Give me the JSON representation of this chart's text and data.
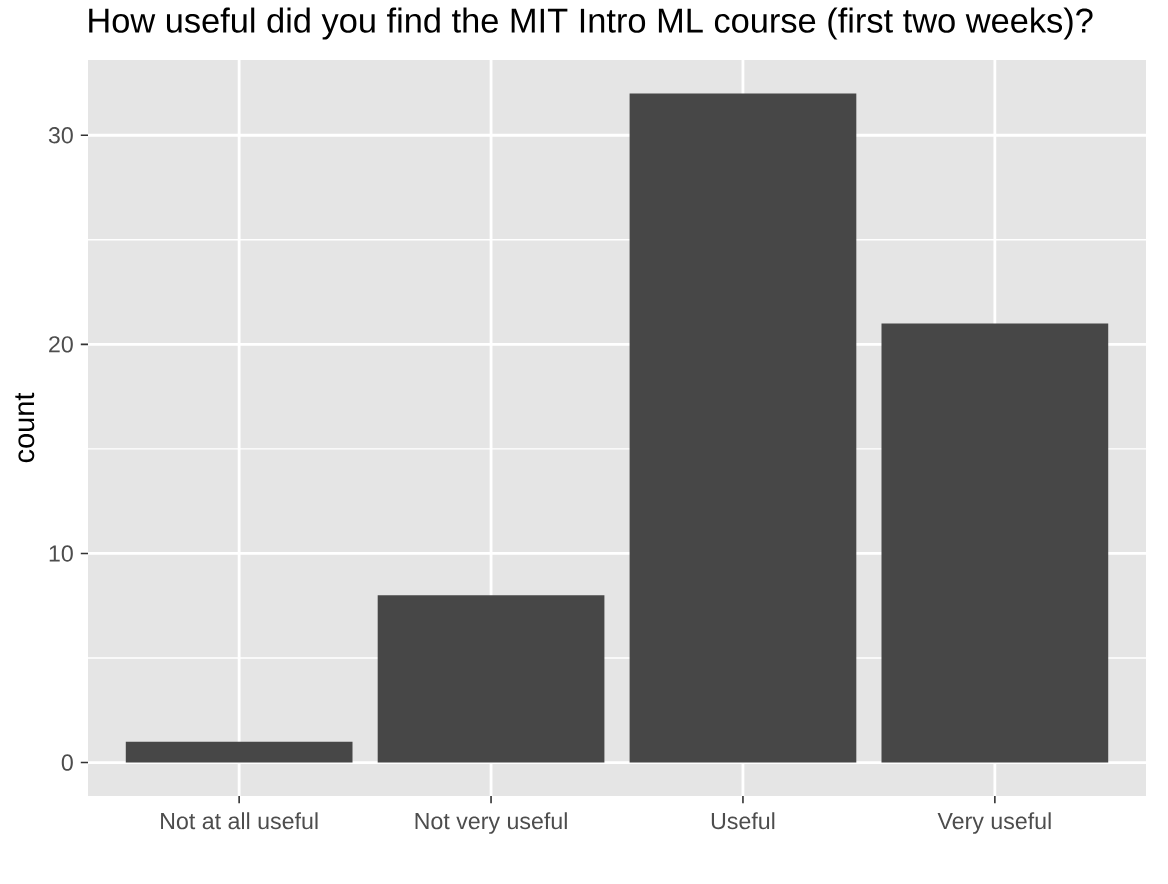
{
  "chart_data": {
    "type": "bar",
    "title": "How useful did you find the MIT Intro ML course (first two weeks)?",
    "ylabel": "count",
    "categories": [
      "Not at all useful",
      "Not very useful",
      "Useful",
      "Very useful"
    ],
    "values": [
      1,
      8,
      32,
      21
    ],
    "color": "#474747",
    "ylim": [
      -1.6,
      33.6
    ],
    "yticks": [
      0,
      10,
      20,
      30
    ],
    "grid": true
  }
}
